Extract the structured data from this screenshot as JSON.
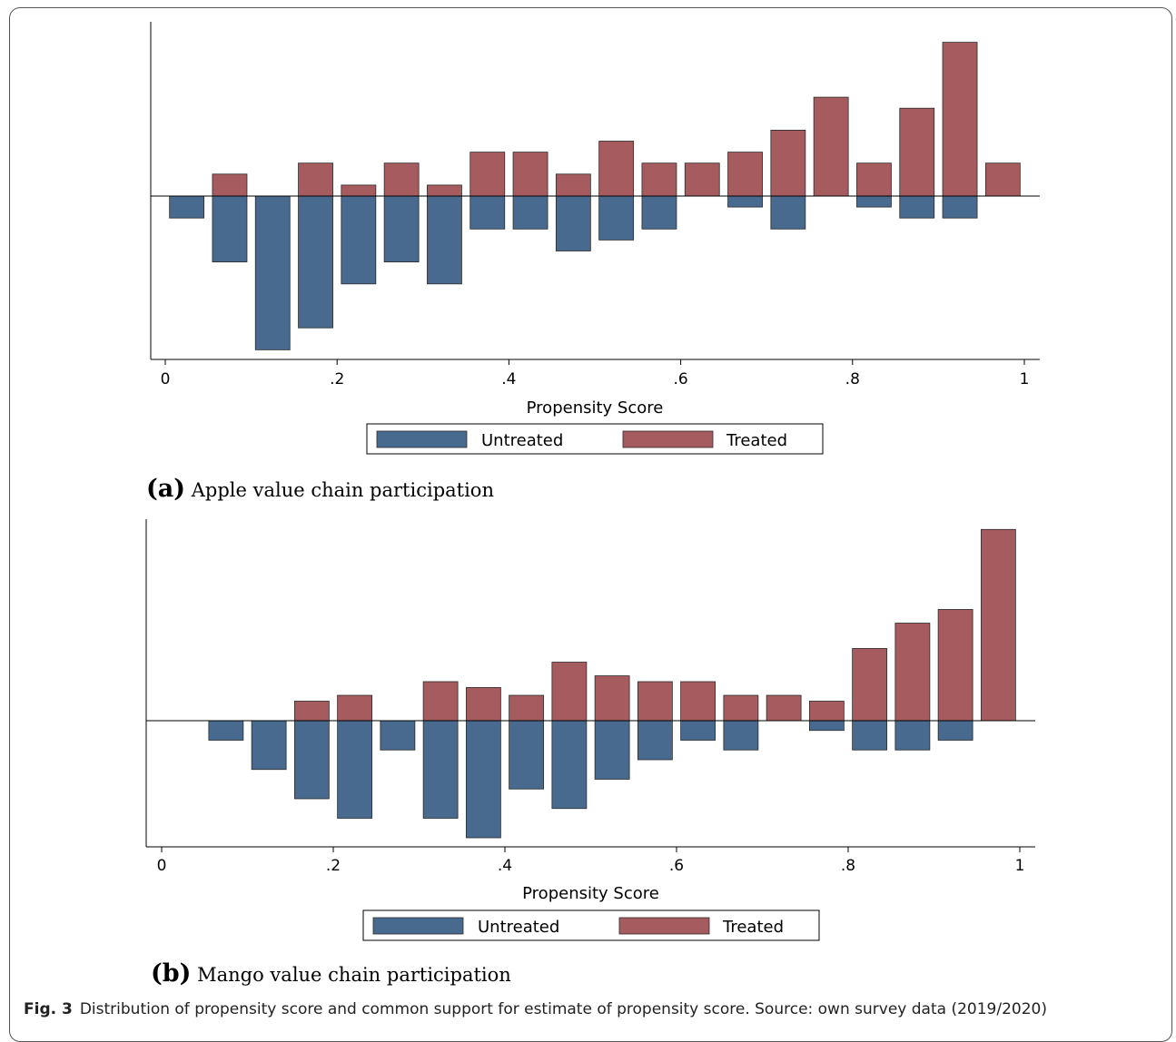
{
  "chart_data": [
    {
      "type": "bar",
      "xlabel": "Propensity Score",
      "xlim": [
        0,
        1
      ],
      "xticks": [
        "0",
        ".2",
        ".4",
        ".6",
        ".8",
        "1"
      ],
      "ylim": [
        -9,
        9
      ],
      "baseline": 0,
      "legend": {
        "placement": "bottom-center",
        "entries": [
          "Untreated",
          "Treated"
        ]
      },
      "colors": {
        "Untreated": "#476a8e",
        "Treated": "#a65c5f"
      },
      "bin_centers": [
        0.025,
        0.075,
        0.125,
        0.175,
        0.225,
        0.275,
        0.325,
        0.375,
        0.425,
        0.475,
        0.525,
        0.575,
        0.625,
        0.675,
        0.725,
        0.775,
        0.825,
        0.875,
        0.925,
        0.975
      ],
      "series": [
        {
          "name": "Untreated",
          "values": [
            -1,
            -3,
            -7,
            -6,
            -4,
            -3,
            -4,
            -1.5,
            -1.5,
            -2.5,
            -2,
            -1.5,
            0,
            -0.5,
            -1.5,
            0,
            -0.5,
            -1,
            -1,
            0
          ]
        },
        {
          "name": "Treated",
          "values": [
            0,
            1,
            0,
            1.5,
            0.5,
            1.5,
            0.5,
            2,
            2,
            1,
            2.5,
            1.5,
            1.5,
            2,
            3,
            4.5,
            1.5,
            4,
            7,
            1.5
          ]
        }
      ],
      "caption": {
        "letter": "(a)",
        "text": "Apple value chain participation"
      }
    },
    {
      "type": "bar",
      "xlabel": "Propensity Score",
      "xlim": [
        0,
        1
      ],
      "xticks": [
        "0",
        ".2",
        ".4",
        ".6",
        ".8",
        "1"
      ],
      "ylim": [
        -9,
        9
      ],
      "baseline": 0,
      "legend": {
        "placement": "bottom-center",
        "entries": [
          "Untreated",
          "Treated"
        ]
      },
      "colors": {
        "Untreated": "#476a8e",
        "Treated": "#a65c5f"
      },
      "bin_centers": [
        0.025,
        0.075,
        0.125,
        0.175,
        0.225,
        0.275,
        0.325,
        0.375,
        0.425,
        0.475,
        0.525,
        0.575,
        0.625,
        0.675,
        0.725,
        0.775,
        0.825,
        0.875,
        0.925,
        0.975
      ],
      "series": [
        {
          "name": "Untreated",
          "values": [
            0,
            -1,
            -2.5,
            -4,
            -5,
            -1.5,
            -5,
            -6,
            -3.5,
            -4.5,
            -3,
            -2,
            -1,
            -1.5,
            0,
            -0.5,
            -1.5,
            -1.5,
            -1,
            0
          ]
        },
        {
          "name": "Treated",
          "values": [
            0,
            0,
            0,
            1,
            1.3,
            0,
            2,
            1.7,
            1.3,
            3,
            2.3,
            2,
            2,
            1.3,
            1.3,
            1,
            3.7,
            5,
            5.7,
            9.8
          ]
        }
      ],
      "caption": {
        "letter": "(b)",
        "text": "Mango value chain participation"
      }
    }
  ],
  "figure_caption": {
    "label": "Fig. 3",
    "text": "Distribution of propensity score and common support for estimate of propensity score. Source: own survey data (2019/2020)"
  }
}
